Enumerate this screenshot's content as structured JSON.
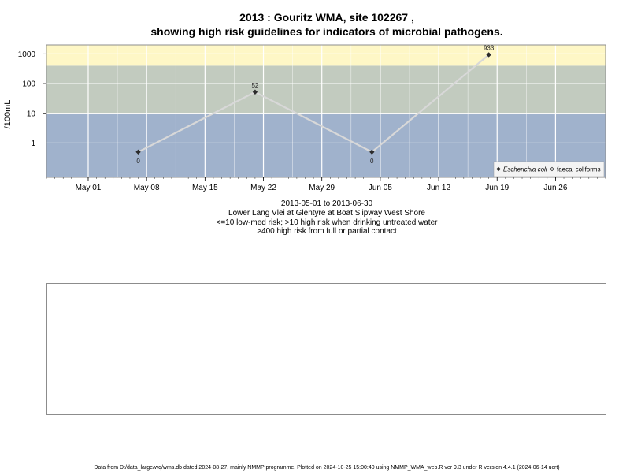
{
  "header": {
    "title_line1": "2013 : Gouritz WMA, site 102267 ,",
    "title_line2": "showing high risk guidelines for indicators of microbial pathogens."
  },
  "captions": {
    "date_range": "2013-05-01 to 2013-06-30",
    "location": "Lower Lang Vlei at Glentyre at Boat Slipway West Shore",
    "guideline_low": "<=10 low-med risk; >10 high risk when drinking untreated water",
    "guideline_high": ">400 high risk from full or partial contact"
  },
  "footer": {
    "text": "Data from D:/data_large/wq/wms.db dated 2024-08-27, mainly NMMP programme. Plotted on 2024-10-25 15:00:40 using NMMP_WMA_web.R ver 9.3 under R version 4.4.1 (2024-06-14 ucrt)"
  },
  "colors": {
    "band_low": "#a0b2cc",
    "band_mid": "#c2cbbf",
    "band_high": "#fef7c6",
    "grid": "#ffffff",
    "series_line": "#d8d8d8",
    "marker": "#2b2b2b"
  },
  "chart_data": {
    "type": "line",
    "ylabel": "/100mL",
    "xlabel": "",
    "yscale": "log",
    "ylim": [
      0.07,
      2000
    ],
    "xlim": [
      "2013-04-26",
      "2013-07-02"
    ],
    "y_ticks": [
      {
        "value": 1,
        "label": "1"
      },
      {
        "value": 10,
        "label": "10"
      },
      {
        "value": 100,
        "label": "100"
      },
      {
        "value": 1000,
        "label": "1000"
      }
    ],
    "x_ticks": [
      {
        "date": "2013-05-01",
        "label": "May 01"
      },
      {
        "date": "2013-05-08",
        "label": "May 08"
      },
      {
        "date": "2013-05-15",
        "label": "May 15"
      },
      {
        "date": "2013-05-22",
        "label": "May 22"
      },
      {
        "date": "2013-05-29",
        "label": "May 29"
      },
      {
        "date": "2013-06-05",
        "label": "Jun 05"
      },
      {
        "date": "2013-06-12",
        "label": "Jun 12"
      },
      {
        "date": "2013-06-19",
        "label": "Jun 19"
      },
      {
        "date": "2013-06-26",
        "label": "Jun 26"
      }
    ],
    "risk_bands": [
      {
        "from": 0.07,
        "to": 10
      },
      {
        "from": 10,
        "to": 400
      },
      {
        "from": 400,
        "to": 2000
      }
    ],
    "grid": true,
    "legend_position": "bottom-right",
    "legend": [
      {
        "name": "Escherichia coli",
        "marker": "filled-diamond",
        "italic": true
      },
      {
        "name": "faecal coliforms",
        "marker": "open-diamond",
        "italic": false
      }
    ],
    "series": [
      {
        "name": "Escherichia coli",
        "points": [
          {
            "date": "2013-05-07",
            "y": 0.5,
            "label": "0",
            "label_pos": "below"
          },
          {
            "date": "2013-05-21",
            "y": 52,
            "label": "52",
            "label_pos": "above"
          },
          {
            "date": "2013-06-04",
            "y": 0.5,
            "label": "0",
            "label_pos": "below"
          },
          {
            "date": "2013-06-18",
            "y": 933,
            "label": "933",
            "label_pos": "above"
          }
        ]
      }
    ]
  }
}
